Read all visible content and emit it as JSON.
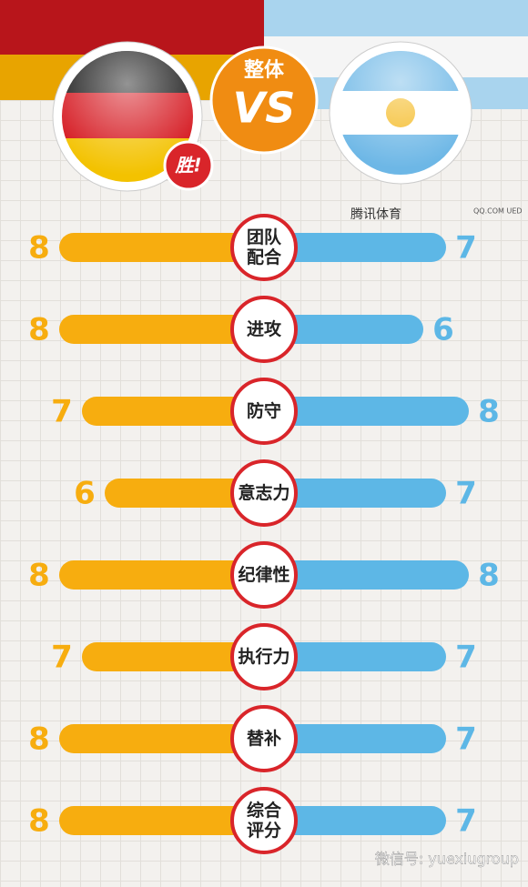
{
  "chart_data": {
    "type": "butterfly",
    "header": "整体",
    "vs": "VS",
    "badge": "胜!",
    "brand": "腾讯体育",
    "brand2": "QQ.COM UED",
    "footer": "微信号: yuexiugroup",
    "categories": [
      "团队配合",
      "进攻",
      "防守",
      "意志力",
      "纪律性",
      "执行力",
      "替补",
      "综合评分"
    ],
    "series": [
      {
        "color": "#f7ad0f",
        "values": [
          8,
          8,
          7,
          6,
          8,
          7,
          8,
          8
        ]
      },
      {
        "color": "#5db7e6",
        "values": [
          7,
          6,
          8,
          7,
          8,
          7,
          7,
          7
        ]
      }
    ],
    "xlim": [
      0,
      8
    ]
  }
}
